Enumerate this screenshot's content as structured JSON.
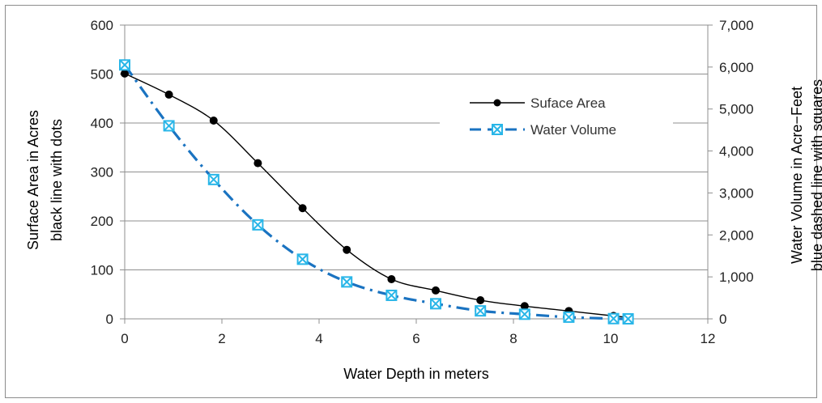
{
  "chart_data": {
    "type": "line",
    "xlabel": "Water Depth in meters",
    "ylabel_left": [
      "Surface Area in Acres",
      "black line with dots"
    ],
    "ylabel_right": [
      "Water Volume in Acre-Feet",
      "blue dashed line with squares"
    ],
    "xlim": [
      0,
      12
    ],
    "ylim_left": [
      0,
      600
    ],
    "ylim_right": [
      0,
      7000
    ],
    "x_ticks": [
      "0",
      "2",
      "4",
      "6",
      "8",
      "10",
      "12"
    ],
    "y_left_ticks": [
      "0",
      "100",
      "200",
      "300",
      "400",
      "500",
      "600"
    ],
    "y_right_ticks": [
      "0",
      "1,000",
      "2,000",
      "3,000",
      "4,000",
      "5,000",
      "6,000",
      "7,000"
    ],
    "grid": true,
    "legend_position": "top-right",
    "series": [
      {
        "name": "Suface Area",
        "axis": "left",
        "color": "#000000",
        "x": [
          0,
          0.91,
          1.83,
          2.74,
          3.66,
          4.57,
          5.49,
          6.4,
          7.32,
          8.23,
          9.14,
          10.06,
          10.36
        ],
        "values": [
          501,
          458,
          405,
          318,
          226,
          141,
          81,
          58,
          38,
          26,
          16,
          6,
          3
        ]
      },
      {
        "name": "Water Volume",
        "axis": "right",
        "color": "#1a73c1",
        "x": [
          0,
          0.91,
          1.83,
          2.74,
          3.66,
          4.57,
          5.49,
          6.4,
          7.32,
          8.23,
          9.14,
          10.06,
          10.36
        ],
        "values": [
          6050,
          4600,
          3320,
          2240,
          1420,
          880,
          560,
          360,
          190,
          110,
          40,
          5,
          0
        ]
      }
    ]
  }
}
